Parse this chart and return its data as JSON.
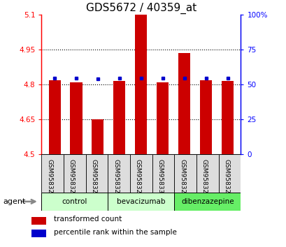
{
  "title": "GDS5672 / 40359_at",
  "samples": [
    "GSM958322",
    "GSM958323",
    "GSM958324",
    "GSM958328",
    "GSM958329",
    "GSM958330",
    "GSM958325",
    "GSM958326",
    "GSM958327"
  ],
  "red_values": [
    4.82,
    4.81,
    4.65,
    4.815,
    5.1,
    4.81,
    4.935,
    4.82,
    4.815
  ],
  "blue_values": [
    4.828,
    4.828,
    4.824,
    4.828,
    4.828,
    4.828,
    4.828,
    4.828,
    4.828
  ],
  "ymin": 4.5,
  "ymax": 5.1,
  "yticks": [
    4.5,
    4.65,
    4.8,
    4.95,
    5.1
  ],
  "ytick_labels": [
    "4.5",
    "4.65",
    "4.8",
    "4.95",
    "5.1"
  ],
  "right_yticks": [
    0,
    25,
    50,
    75,
    100
  ],
  "right_ytick_labels": [
    "0",
    "25",
    "50",
    "75",
    "100%"
  ],
  "groups": [
    {
      "label": "control",
      "indices": [
        0,
        1,
        2
      ],
      "color": "#ccffcc"
    },
    {
      "label": "bevacizumab",
      "indices": [
        3,
        4,
        5
      ],
      "color": "#ccffcc"
    },
    {
      "label": "dibenzazepine",
      "indices": [
        6,
        7,
        8
      ],
      "color": "#66ee66"
    }
  ],
  "bar_color": "#cc0000",
  "marker_color": "#0000cc",
  "background_color": "#ffffff",
  "grid_color": "#000000",
  "title_fontsize": 11,
  "tick_fontsize": 7.5,
  "sample_fontsize": 6.5,
  "agent_label": "agent",
  "legend_red": "transformed count",
  "legend_blue": "percentile rank within the sample"
}
